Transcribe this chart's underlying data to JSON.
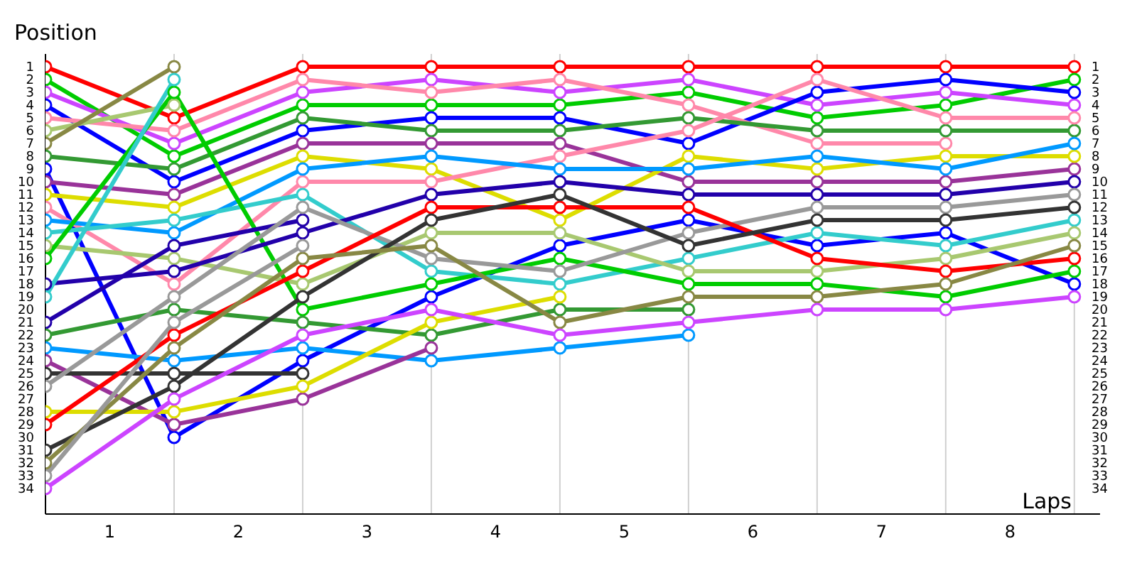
{
  "chart_data": {
    "type": "line",
    "xlabel": "Laps",
    "ylabel": "Position",
    "x": [
      0,
      1,
      2,
      3,
      4,
      5,
      6,
      7,
      8
    ],
    "xlim": [
      0,
      8.2
    ],
    "xticks": [
      {
        "value": 0,
        "label": null
      },
      {
        "value": 0.5,
        "label": "1"
      },
      {
        "value": 1,
        "label": null
      },
      {
        "value": 1.5,
        "label": "2"
      },
      {
        "value": 2,
        "label": null
      },
      {
        "value": 2.5,
        "label": "3"
      },
      {
        "value": 3,
        "label": null
      },
      {
        "value": 3.5,
        "label": "4"
      },
      {
        "value": 4,
        "label": null
      },
      {
        "value": 4.5,
        "label": "5"
      },
      {
        "value": 5,
        "label": null
      },
      {
        "value": 5.5,
        "label": "6"
      },
      {
        "value": 6,
        "label": null
      },
      {
        "value": 6.5,
        "label": "7"
      },
      {
        "value": 7,
        "label": null
      },
      {
        "value": 7.5,
        "label": "8"
      },
      {
        "value": 8,
        "label": null
      }
    ],
    "ylim": [
      36,
      0
    ],
    "yticks": [
      1,
      2,
      3,
      4,
      5,
      6,
      7,
      8,
      9,
      10,
      11,
      12,
      13,
      14,
      15,
      16,
      17,
      18,
      19,
      20,
      21,
      22,
      23,
      24,
      25,
      26,
      27,
      28,
      29,
      30,
      31,
      32,
      33,
      34
    ],
    "y2lim": [
      36,
      0
    ],
    "y2ticks": [
      1,
      2,
      3,
      4,
      5,
      6,
      7,
      8,
      9,
      10,
      11,
      12,
      13,
      14,
      15,
      16,
      17,
      18,
      19,
      20,
      21,
      22,
      23,
      24,
      25,
      26,
      27,
      28,
      29,
      30,
      31,
      32,
      33,
      34
    ],
    "grid": true,
    "marker": "circle",
    "line_style": "solid",
    "series": [
      {
        "color": "#ff0000",
        "values": [
          1,
          5,
          1,
          1,
          1,
          1,
          1,
          1,
          1
        ]
      },
      {
        "color": "#00cc00",
        "values": [
          2,
          8,
          4,
          4,
          4,
          3,
          5,
          4,
          2
        ]
      },
      {
        "color": "#cc44ff",
        "values": [
          3,
          7,
          3,
          2,
          3,
          2,
          4,
          3,
          4
        ]
      },
      {
        "color": "#0000ff",
        "values": [
          4,
          10,
          6,
          5,
          5,
          7,
          3,
          2,
          3
        ]
      },
      {
        "color": "#ff88aa",
        "values": [
          5,
          6,
          2,
          3,
          2,
          4,
          7,
          7,
          null
        ]
      },
      {
        "color": "#a8c870",
        "values": [
          6,
          4,
          null,
          null,
          null,
          null,
          null,
          null,
          null
        ]
      },
      {
        "color": "#888844",
        "values": [
          7,
          1,
          null,
          null,
          null,
          null,
          null,
          null,
          null
        ]
      },
      {
        "color": "#339933",
        "values": [
          8,
          9,
          5,
          6,
          6,
          5,
          6,
          6,
          6
        ]
      },
      {
        "color": "#0000ff",
        "values": [
          9,
          30,
          24,
          19,
          15,
          13,
          15,
          14,
          18
        ]
      },
      {
        "color": "#993399",
        "values": [
          10,
          11,
          7,
          7,
          7,
          10,
          10,
          10,
          9
        ]
      },
      {
        "color": "#dddd00",
        "values": [
          11,
          12,
          8,
          9,
          13,
          8,
          9,
          8,
          8
        ]
      },
      {
        "color": "#ff88aa",
        "values": [
          12,
          18,
          10,
          10,
          8,
          6,
          2,
          5,
          5
        ]
      },
      {
        "color": "#0099ff",
        "values": [
          13,
          14,
          9,
          8,
          9,
          9,
          8,
          9,
          7
        ]
      },
      {
        "color": "#33cccc",
        "values": [
          14,
          13,
          11,
          17,
          18,
          16,
          14,
          15,
          13
        ]
      },
      {
        "color": "#a8c870",
        "values": [
          15,
          16,
          18,
          14,
          14,
          17,
          17,
          16,
          14
        ]
      },
      {
        "color": "#00cc00",
        "values": [
          16,
          3,
          20,
          18,
          16,
          18,
          18,
          19,
          17
        ]
      },
      {
        "color": "#2200aa",
        "values": [
          18,
          17,
          14,
          11,
          10,
          11,
          11,
          11,
          10
        ]
      },
      {
        "color": "#33cccc",
        "values": [
          19,
          2,
          null,
          null,
          null,
          null,
          null,
          null,
          null
        ]
      },
      {
        "color": "#2200aa",
        "values": [
          21,
          15,
          13,
          null,
          null,
          null,
          null,
          null,
          null
        ]
      },
      {
        "color": "#339933",
        "values": [
          22,
          20,
          21,
          22,
          20,
          20,
          null,
          null,
          null
        ]
      },
      {
        "color": "#0099ff",
        "values": [
          23,
          24,
          23,
          24,
          23,
          22,
          null,
          null,
          null
        ]
      },
      {
        "color": "#993399",
        "values": [
          24,
          29,
          27,
          23,
          null,
          null,
          null,
          null,
          null
        ]
      },
      {
        "color": "#333333",
        "values": [
          25,
          25,
          25,
          null,
          null,
          null,
          null,
          null,
          null
        ]
      },
      {
        "color": "#999999",
        "values": [
          26,
          19,
          12,
          16,
          17,
          14,
          12,
          12,
          11
        ]
      },
      {
        "color": "#dddd00",
        "values": [
          28,
          28,
          26,
          21,
          19,
          null,
          null,
          null,
          null
        ]
      },
      {
        "color": "#ff0000",
        "values": [
          29,
          22,
          17,
          12,
          12,
          12,
          16,
          17,
          16
        ]
      },
      {
        "color": "#333333",
        "values": [
          31,
          26,
          19,
          13,
          11,
          15,
          13,
          13,
          12
        ]
      },
      {
        "color": "#888844",
        "values": [
          32,
          23,
          16,
          15,
          21,
          19,
          19,
          18,
          15
        ]
      },
      {
        "color": "#999999",
        "values": [
          33,
          21,
          15,
          null,
          null,
          null,
          null,
          null,
          null
        ]
      },
      {
        "color": "#cc44ff",
        "values": [
          34,
          27,
          22,
          20,
          22,
          21,
          20,
          20,
          19
        ]
      }
    ]
  }
}
